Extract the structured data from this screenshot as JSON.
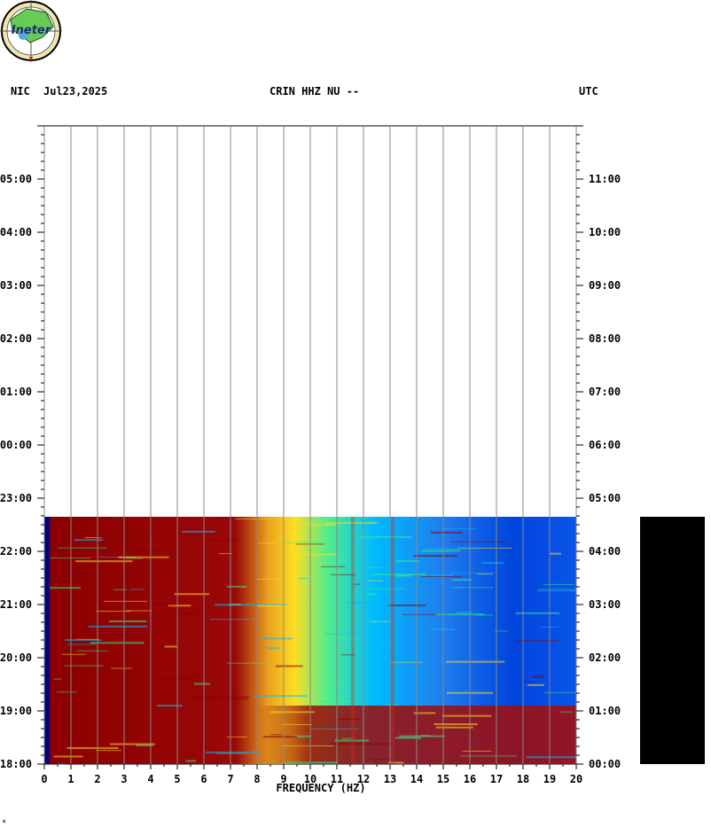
{
  "header": {
    "network": "NIC",
    "date": "Jul23,2025",
    "station": "CRIN HHZ NU --",
    "timezone": "UTC"
  },
  "logo": {
    "text": "Ineter"
  },
  "footnote": "*",
  "chart_data": {
    "type": "heatmap",
    "title": "CRIN HHZ NU --",
    "xlabel": "FREQUENCY (HZ)",
    "ylabel": "",
    "xlim": [
      0,
      20
    ],
    "x_ticks": [
      "0",
      "1",
      "2",
      "3",
      "4",
      "5",
      "6",
      "7",
      "8",
      "9",
      "10",
      "11",
      "12",
      "13",
      "14",
      "15",
      "16",
      "17",
      "18",
      "19",
      "20"
    ],
    "y_ticks_left": [
      "18:00",
      "19:00",
      "20:00",
      "21:00",
      "22:00",
      "23:00",
      "00:00",
      "01:00",
      "02:00",
      "03:00",
      "04:00",
      "05:00"
    ],
    "y_ticks_right": [
      "00:00",
      "01:00",
      "02:00",
      "03:00",
      "04:00",
      "05:00",
      "06:00",
      "07:00",
      "08:00",
      "09:00",
      "10:00",
      "11:00"
    ],
    "ylim_hours": [
      0,
      12
    ],
    "data_end_hours": 4.65,
    "grid": true,
    "colors": {
      "low": "#0033dd",
      "mid_low": "#00bbff",
      "mid": "#33ee88",
      "mid_high": "#ffdd22",
      "high": "#8b0000",
      "edge": "#000080",
      "gridline": "#888888"
    },
    "summary": [
      {
        "freq_range": [
          0,
          0.2
        ],
        "level": "edge"
      },
      {
        "freq_range": [
          0.2,
          8
        ],
        "level": "high"
      },
      {
        "freq_range": [
          8,
          10
        ],
        "level": "mid_high"
      },
      {
        "freq_range": [
          10,
          14
        ],
        "level": "mid_low"
      },
      {
        "freq_range": [
          14,
          20
        ],
        "level": "low"
      }
    ]
  }
}
